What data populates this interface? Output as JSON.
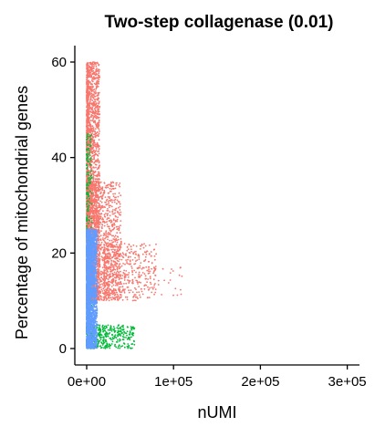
{
  "chart_data": {
    "type": "scatter",
    "title": "Two-step collagenase (0.01)",
    "xlabel": "nUMI",
    "ylabel": "Percentage of mitochondrial genes",
    "xlim": [
      -3000,
      300000
    ],
    "ylim": [
      -1,
      62
    ],
    "x_ticks": [
      {
        "value": 0,
        "label": "0e+00"
      },
      {
        "value": 100000,
        "label": "1e+05"
      },
      {
        "value": 200000,
        "label": "2e+05"
      },
      {
        "value": 300000,
        "label": "3e+05"
      }
    ],
    "y_ticks": [
      {
        "value": 0,
        "label": "0"
      },
      {
        "value": 20,
        "label": "20"
      },
      {
        "value": 40,
        "label": "40"
      },
      {
        "value": 60,
        "label": "60"
      }
    ],
    "grid": false,
    "legend": "none",
    "series": [
      {
        "color": "#F8766D",
        "description_ranges": {
          "x": [
            0,
            110000
          ],
          "y": [
            5,
            60
          ]
        },
        "clusters": [
          {
            "x_range": [
              0,
              15000
            ],
            "y_range": [
              10,
              60
            ],
            "n": 2200
          },
          {
            "x_range": [
              0,
              40000
            ],
            "y_range": [
              10,
              35
            ],
            "n": 1400
          },
          {
            "x_range": [
              20000,
              80000
            ],
            "y_range": [
              10,
              22
            ],
            "n": 500
          },
          {
            "x_range": [
              60000,
              110000
            ],
            "y_range": [
              11,
              17
            ],
            "n": 40
          }
        ]
      },
      {
        "color": "#00BA38",
        "clusters": [
          {
            "x_range": [
              0,
              6000
            ],
            "y_range": [
              0,
              45
            ],
            "n": 300
          },
          {
            "x_range": [
              0,
              55000
            ],
            "y_range": [
              0,
              5
            ],
            "n": 450
          }
        ]
      },
      {
        "color": "#619CFF",
        "clusters": [
          {
            "x_range": [
              0,
              12000
            ],
            "y_range": [
              0,
              25
            ],
            "n": 2400
          }
        ]
      }
    ]
  }
}
